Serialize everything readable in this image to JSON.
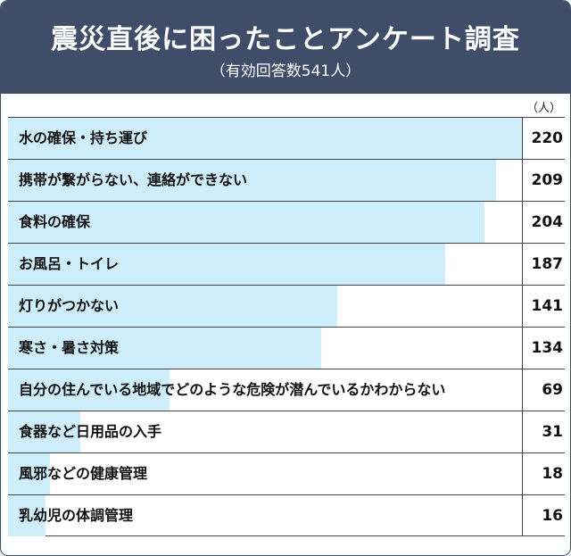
{
  "title": "震災直後に困ったことアンケート調査",
  "subtitle": "（有効回答数541人）",
  "unit": "（人）",
  "colors": {
    "header": "#3f4d68",
    "bar": "#cfeefb"
  },
  "chart_data": {
    "type": "bar",
    "orientation": "horizontal",
    "title": "震災直後に困ったことアンケート調査",
    "subtitle": "（有効回答数541人）",
    "unit": "（人）",
    "categories": [
      "水の確保・持ち運び",
      "携帯が繋がらない、連絡ができない",
      "食料の確保",
      "お風呂・トイレ",
      "灯りがつかない",
      "寒さ・暑さ対策",
      "自分の住んでいる地域でどのような危険が潜んでいるかわからない",
      "食器など日用品の入手",
      "風邪などの健康管理",
      "乳幼児の体調管理"
    ],
    "values": [
      220,
      209,
      204,
      187,
      141,
      134,
      69,
      31,
      18,
      16
    ],
    "xlim": [
      0,
      220
    ]
  }
}
